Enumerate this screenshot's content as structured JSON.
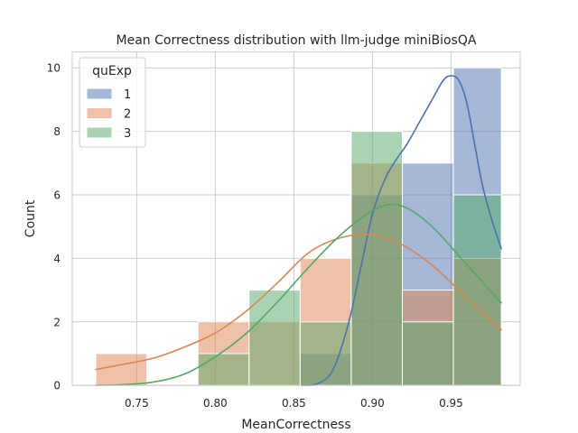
{
  "chart_data": {
    "type": "histogram",
    "title": "Mean Correctness distribution with llm-judge miniBiosQA",
    "xlabel": "MeanCorrectness",
    "ylabel": "Count",
    "xlim": [
      0.709,
      0.994
    ],
    "ylim": [
      0,
      10.5
    ],
    "xticks": [
      {
        "value": 0.75,
        "label": "0.75"
      },
      {
        "value": 0.8,
        "label": "0.80"
      },
      {
        "value": 0.85,
        "label": "0.85"
      },
      {
        "value": 0.9,
        "label": "0.90"
      },
      {
        "value": 0.95,
        "label": "0.95"
      }
    ],
    "yticks": [
      {
        "value": 0,
        "label": "0"
      },
      {
        "value": 2,
        "label": "2"
      },
      {
        "value": 4,
        "label": "4"
      },
      {
        "value": 6,
        "label": "6"
      },
      {
        "value": 8,
        "label": "8"
      },
      {
        "value": 10,
        "label": "10"
      }
    ],
    "grid": true,
    "legend": {
      "title": "quExp",
      "placement": "top-left"
    },
    "bin_edges": [
      0.724,
      0.7565,
      0.789,
      0.8215,
      0.854,
      0.8865,
      0.919,
      0.9515,
      0.982
    ],
    "series": [
      {
        "name": "1",
        "color": "#4c72b0",
        "counts": [
          0,
          0,
          0,
          0,
          1,
          6,
          7,
          10
        ],
        "kde_x": [
          0.855,
          0.865,
          0.875,
          0.885,
          0.893,
          0.9,
          0.908,
          0.915,
          0.922,
          0.93,
          0.938,
          0.945,
          0.95,
          0.955,
          0.96,
          0.965,
          0.97,
          0.976,
          0.982
        ],
        "kde_y": [
          0.0,
          0.05,
          0.5,
          2.0,
          3.8,
          5.4,
          6.5,
          7.1,
          7.6,
          8.3,
          9.0,
          9.6,
          9.75,
          9.6,
          8.9,
          7.6,
          6.3,
          5.2,
          4.3
        ]
      },
      {
        "name": "2",
        "color": "#dd8452",
        "counts": [
          1,
          0,
          2,
          2,
          4,
          7,
          3,
          4
        ],
        "kde_x": [
          0.724,
          0.74,
          0.76,
          0.78,
          0.8,
          0.82,
          0.84,
          0.86,
          0.88,
          0.9,
          0.92,
          0.94,
          0.96,
          0.982
        ],
        "kde_y": [
          0.5,
          0.65,
          0.85,
          1.2,
          1.65,
          2.35,
          3.25,
          4.2,
          4.65,
          4.75,
          4.4,
          3.7,
          2.75,
          1.75
        ]
      },
      {
        "name": "3",
        "color": "#55a868",
        "counts": [
          0,
          0,
          1,
          3,
          2,
          8,
          2,
          6
        ],
        "kde_x": [
          0.724,
          0.74,
          0.76,
          0.78,
          0.8,
          0.82,
          0.84,
          0.86,
          0.88,
          0.9,
          0.913,
          0.925,
          0.94,
          0.96,
          0.982
        ],
        "kde_y": [
          0.0,
          0.02,
          0.1,
          0.35,
          0.9,
          1.65,
          2.65,
          3.75,
          4.75,
          5.5,
          5.7,
          5.5,
          4.9,
          3.8,
          2.6
        ]
      }
    ]
  }
}
